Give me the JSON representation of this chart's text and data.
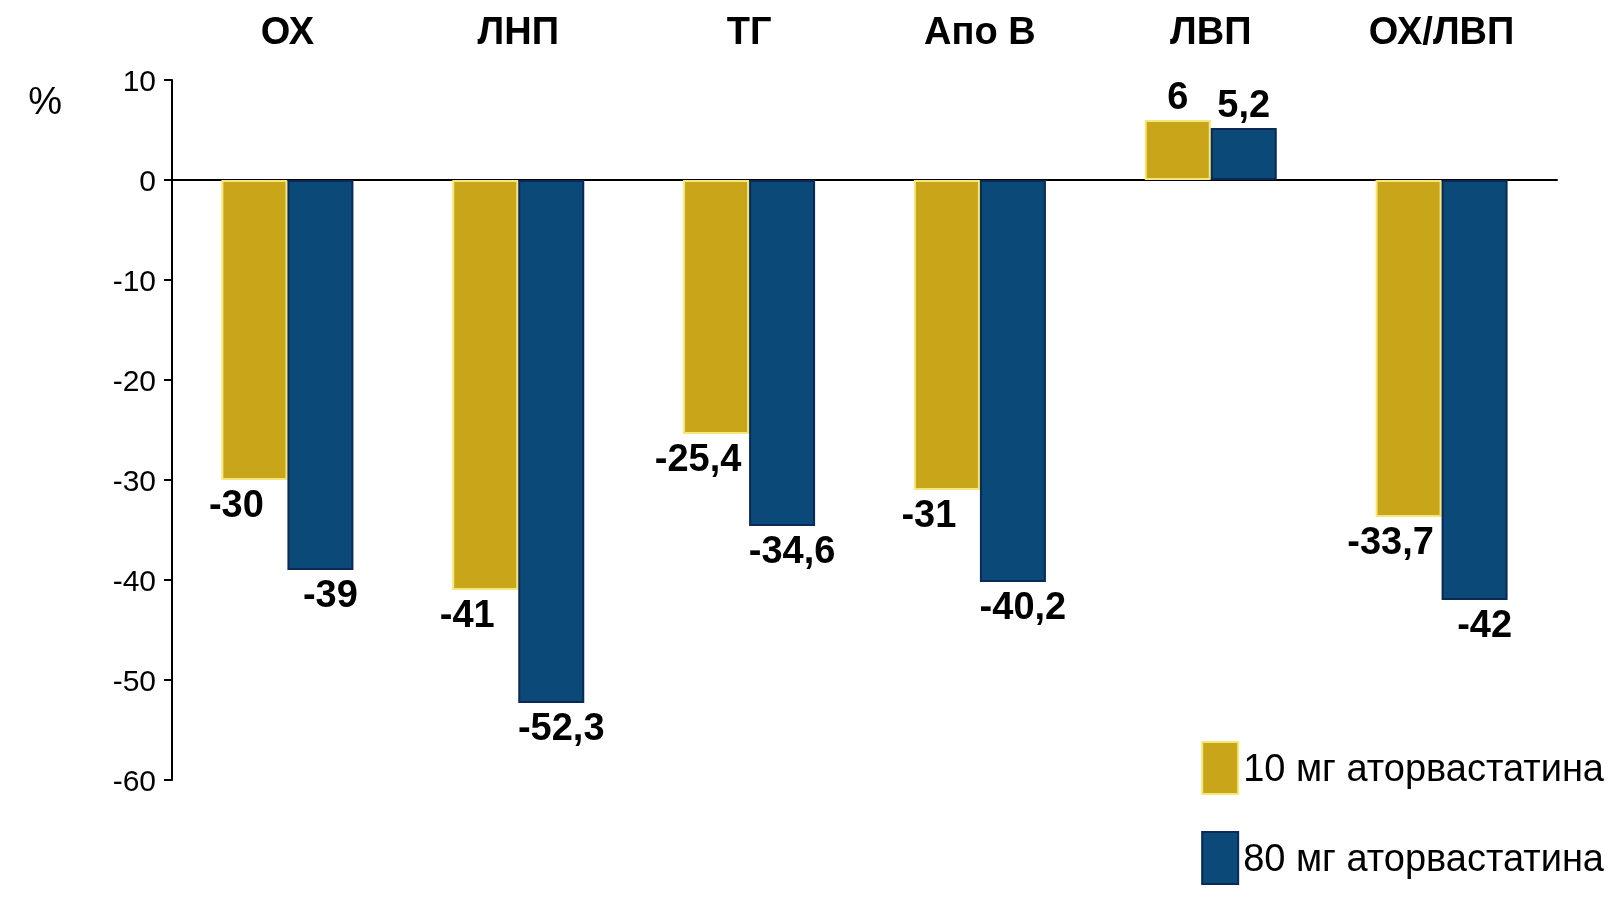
{
  "chart_data": {
    "type": "bar",
    "ylabel": "%",
    "categories": [
      "ОХ",
      "ЛНП",
      "ТГ",
      "Апо В",
      "ЛВП",
      "ОХ/ЛВП"
    ],
    "series": [
      {
        "name": "10 мг аторвастатина",
        "color": "#c9a51a",
        "values": [
          -30,
          -41,
          -25.4,
          -31,
          6,
          -33.7
        ],
        "value_labels": [
          "-30",
          "-41",
          "-25,4",
          "-31",
          "6",
          "-33,7"
        ]
      },
      {
        "name": "80 мг аторвастатина",
        "color": "#0b4a78",
        "values": [
          -39,
          -52.3,
          -34.6,
          -40.2,
          5.2,
          -42
        ],
        "value_labels": [
          "-39",
          "-52,3",
          "-34,6",
          "-40,2",
          "5,2",
          "-42"
        ]
      }
    ],
    "ylim": [
      -60,
      10
    ],
    "yticks": [
      -60,
      -50,
      -40,
      -30,
      -20,
      -10,
      0,
      10
    ],
    "legend": "bottom right"
  }
}
